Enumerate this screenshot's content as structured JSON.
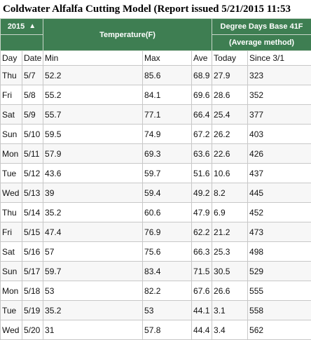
{
  "title": "Coldwater Alfalfa Cutting Model (Report issued 5/21/2015 11:53",
  "colors": {
    "header_bg": "#3e7e52",
    "border": "#c8c8c8"
  },
  "header": {
    "year": "2015",
    "sort_icon": "chevron-up-icon",
    "temperature": "Temperature(F)",
    "degree_days": "Degree Days Base 41F",
    "method": "(Average method)"
  },
  "columns": {
    "day": "Day",
    "date": "Date",
    "min": "Min",
    "max": "Max",
    "ave": "Ave",
    "today": "Today",
    "since": "Since 3/1"
  },
  "rows": [
    {
      "day": "Thu",
      "date": "5/7",
      "min": "52.2",
      "max": "85.6",
      "ave": "68.9",
      "today": "27.9",
      "since": "323"
    },
    {
      "day": "Fri",
      "date": "5/8",
      "min": "55.2",
      "max": "84.1",
      "ave": "69.6",
      "today": "28.6",
      "since": "352"
    },
    {
      "day": "Sat",
      "date": "5/9",
      "min": "55.7",
      "max": "77.1",
      "ave": "66.4",
      "today": "25.4",
      "since": "377"
    },
    {
      "day": "Sun",
      "date": "5/10",
      "min": "59.5",
      "max": "74.9",
      "ave": "67.2",
      "today": "26.2",
      "since": "403"
    },
    {
      "day": "Mon",
      "date": "5/11",
      "min": "57.9",
      "max": "69.3",
      "ave": "63.6",
      "today": "22.6",
      "since": "426"
    },
    {
      "day": "Tue",
      "date": "5/12",
      "min": "43.6",
      "max": "59.7",
      "ave": "51.6",
      "today": "10.6",
      "since": "437"
    },
    {
      "day": "Wed",
      "date": "5/13",
      "min": "39",
      "max": "59.4",
      "ave": "49.2",
      "today": "8.2",
      "since": "445"
    },
    {
      "day": "Thu",
      "date": "5/14",
      "min": "35.2",
      "max": "60.6",
      "ave": "47.9",
      "today": "6.9",
      "since": "452"
    },
    {
      "day": "Fri",
      "date": "5/15",
      "min": "47.4",
      "max": "76.9",
      "ave": "62.2",
      "today": "21.2",
      "since": "473"
    },
    {
      "day": "Sat",
      "date": "5/16",
      "min": "57",
      "max": "75.6",
      "ave": "66.3",
      "today": "25.3",
      "since": "498"
    },
    {
      "day": "Sun",
      "date": "5/17",
      "min": "59.7",
      "max": "83.4",
      "ave": "71.5",
      "today": "30.5",
      "since": "529"
    },
    {
      "day": "Mon",
      "date": "5/18",
      "min": "53",
      "max": "82.2",
      "ave": "67.6",
      "today": "26.6",
      "since": "555"
    },
    {
      "day": "Tue",
      "date": "5/19",
      "min": "35.2",
      "max": "53",
      "ave": "44.1",
      "today": "3.1",
      "since": "558"
    },
    {
      "day": "Wed",
      "date": "5/20",
      "min": "31",
      "max": "57.8",
      "ave": "44.4",
      "today": "3.4",
      "since": "562"
    }
  ]
}
